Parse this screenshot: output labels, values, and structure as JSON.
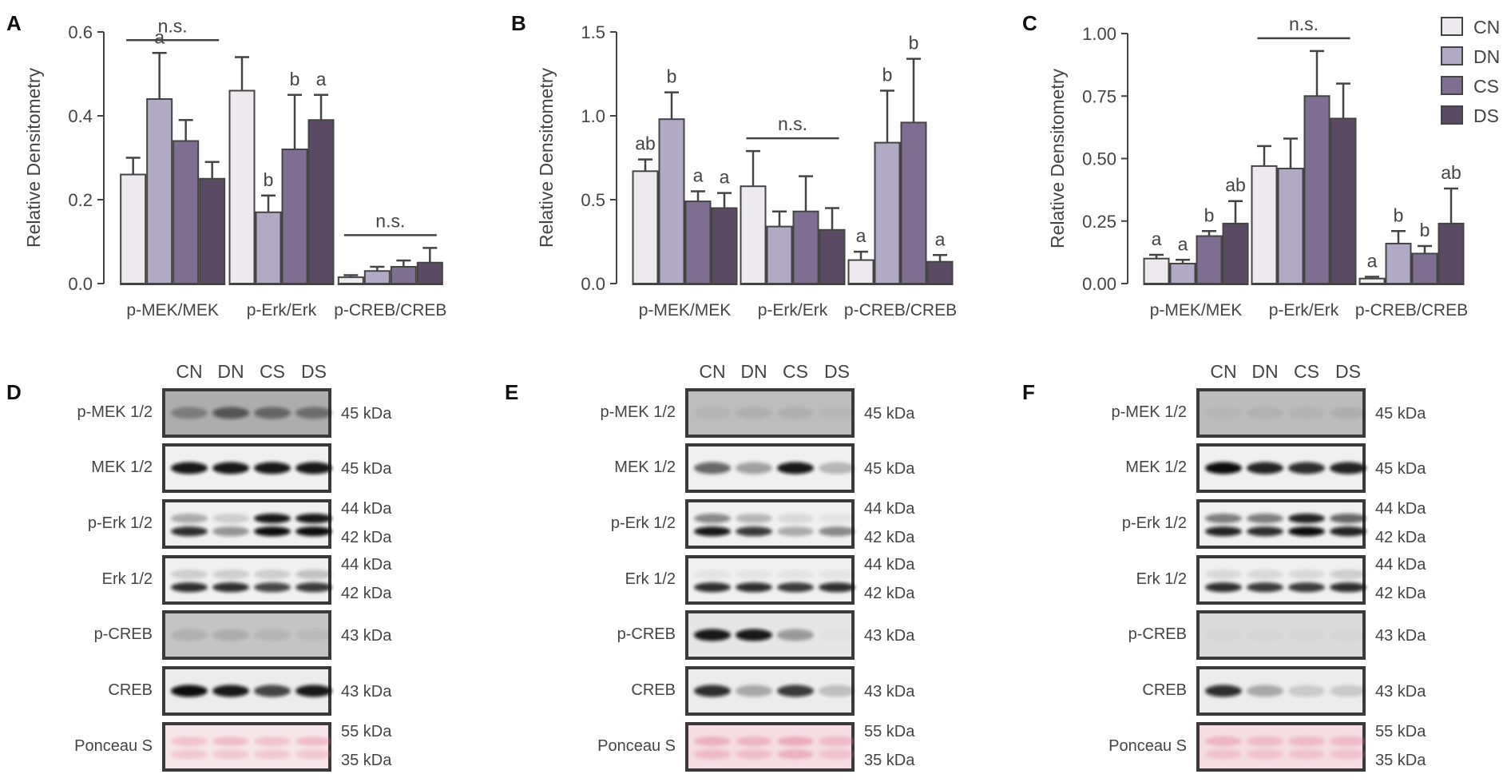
{
  "colors": {
    "CN": "#eceaef",
    "DN": "#b2aac4",
    "CS": "#7e6f92",
    "DS": "#5a4a63",
    "axis": "#444444",
    "stroke": "#444444"
  },
  "legend": {
    "items": [
      {
        "name": "CN",
        "color": "#eceaef"
      },
      {
        "name": "DN",
        "color": "#b2aac4"
      },
      {
        "name": "CS",
        "color": "#7e6f92"
      },
      {
        "name": "DS",
        "color": "#5a4a63"
      }
    ]
  },
  "chart_data": [
    {
      "panel": "A",
      "type": "bar",
      "ylabel": "Relative Densitometry",
      "ylim": [
        0,
        0.6
      ],
      "yticks": [
        0,
        0.2,
        0.4,
        0.6
      ],
      "tick_labels": [
        "0.0",
        "0.2",
        "0.4",
        "0.6"
      ],
      "categories": [
        "p-MEK/MEK",
        "p-Erk/Erk",
        "p-CREB/CREB"
      ],
      "series": [
        {
          "name": "CN",
          "values": [
            0.26,
            0.46,
            0.015
          ],
          "errors": [
            0.04,
            0.08,
            0.005
          ]
        },
        {
          "name": "DN",
          "values": [
            0.44,
            0.17,
            0.03
          ],
          "errors": [
            0.11,
            0.04,
            0.01
          ]
        },
        {
          "name": "CS",
          "values": [
            0.34,
            0.32,
            0.04
          ],
          "errors": [
            0.05,
            0.13,
            0.015
          ]
        },
        {
          "name": "DS",
          "values": [
            0.25,
            0.39,
            0.05
          ],
          "errors": [
            0.04,
            0.06,
            0.035
          ]
        }
      ],
      "letters": [
        [
          "",
          "a",
          "",
          ""
        ],
        [
          "",
          "b",
          "b",
          "a"
        ],
        [
          "",
          "",
          "",
          ""
        ]
      ],
      "ns_label": [
        "n.s.",
        "",
        "n.s."
      ]
    },
    {
      "panel": "B",
      "type": "bar",
      "ylabel": "Relative Densitometry",
      "ylim": [
        0,
        1.5
      ],
      "yticks": [
        0,
        0.5,
        1.0,
        1.5
      ],
      "tick_labels": [
        "0.0",
        "0.5",
        "1.0",
        "1.5"
      ],
      "categories": [
        "p-MEK/MEK",
        "p-Erk/Erk",
        "p-CREB/CREB"
      ],
      "series": [
        {
          "name": "CN",
          "values": [
            0.67,
            0.58,
            0.14
          ],
          "errors": [
            0.07,
            0.21,
            0.05
          ]
        },
        {
          "name": "DN",
          "values": [
            0.98,
            0.34,
            0.84
          ],
          "errors": [
            0.16,
            0.09,
            0.31
          ]
        },
        {
          "name": "CS",
          "values": [
            0.49,
            0.43,
            0.96
          ],
          "errors": [
            0.06,
            0.21,
            0.38
          ]
        },
        {
          "name": "DS",
          "values": [
            0.45,
            0.32,
            0.13
          ],
          "errors": [
            0.09,
            0.13,
            0.04
          ]
        }
      ],
      "letters": [
        [
          "ab",
          "b",
          "a",
          "a"
        ],
        [
          "",
          "",
          "",
          ""
        ],
        [
          "a",
          "b",
          "b",
          "a"
        ]
      ],
      "ns_label": [
        "",
        "n.s.",
        ""
      ]
    },
    {
      "panel": "C",
      "type": "bar",
      "ylabel": "Relative Densitometry",
      "ylim": [
        0,
        1.0
      ],
      "yticks": [
        0,
        0.25,
        0.5,
        0.75,
        1.0
      ],
      "tick_labels": [
        "0.00",
        "0.25",
        "0.50",
        "0.75",
        "1.00"
      ],
      "categories": [
        "p-MEK/MEK",
        "p-Erk/Erk",
        "p-CREB/CREB"
      ],
      "series": [
        {
          "name": "CN",
          "values": [
            0.1,
            0.47,
            0.02
          ],
          "errors": [
            0.015,
            0.08,
            0.007
          ]
        },
        {
          "name": "DN",
          "values": [
            0.08,
            0.46,
            0.16
          ],
          "errors": [
            0.015,
            0.12,
            0.05
          ]
        },
        {
          "name": "CS",
          "values": [
            0.19,
            0.75,
            0.12
          ],
          "errors": [
            0.02,
            0.18,
            0.03
          ]
        },
        {
          "name": "DS",
          "values": [
            0.24,
            0.66,
            0.24
          ],
          "errors": [
            0.09,
            0.14,
            0.14
          ]
        }
      ],
      "letters": [
        [
          "a",
          "a",
          "b",
          "ab"
        ],
        [
          "",
          "",
          "",
          ""
        ],
        [
          "a",
          "b",
          "b",
          "ab"
        ]
      ],
      "ns_label": [
        "",
        "n.s.",
        ""
      ]
    }
  ],
  "blots": {
    "lanes": [
      "CN",
      "DN",
      "CS",
      "DS"
    ],
    "panels": [
      {
        "panel": "D",
        "rows": [
          {
            "label": "p-MEK 1/2",
            "kda": [
              "45 kDa"
            ],
            "bg": "#adadad",
            "bands": [
              [
                0.3,
                0.55,
                0.45,
                0.4
              ]
            ],
            "type": "single"
          },
          {
            "label": "MEK 1/2",
            "kda": [
              "45 kDa"
            ],
            "bg": "#f0f0f0",
            "bands": [
              [
                0.95,
                0.95,
                0.95,
                0.95
              ]
            ],
            "type": "single"
          },
          {
            "label": "p-Erk 1/2",
            "kda": [
              "44 kDa",
              "42 kDa"
            ],
            "bg": "#f0f0f0",
            "bands": [
              [
                0.3,
                0.15,
                0.95,
                0.95
              ],
              [
                0.85,
                0.4,
                1.0,
                1.0
              ]
            ],
            "type": "double"
          },
          {
            "label": "Erk 1/2",
            "kda": [
              "44 kDa",
              "42 kDa"
            ],
            "bg": "#f0f0f0",
            "bands": [
              [
                0.15,
                0.15,
                0.15,
                0.2
              ],
              [
                0.85,
                0.85,
                0.75,
                0.8
              ]
            ],
            "type": "double"
          },
          {
            "label": "p-CREB",
            "kda": [
              "43 kDa"
            ],
            "bg": "#c4c4c4",
            "bands": [
              [
                0.1,
                0.12,
                0.08,
                0.05
              ]
            ],
            "type": "single"
          },
          {
            "label": "CREB",
            "kda": [
              "43 kDa"
            ],
            "bg": "#ececec",
            "bands": [
              [
                1.0,
                0.95,
                0.75,
                0.95
              ]
            ],
            "type": "single"
          },
          {
            "label": "Ponceau S",
            "kda": [
              "55 kDa",
              "35 kDa"
            ],
            "bg": "#f7e6e9",
            "bands": [
              [
                0.4,
                0.45,
                0.4,
                0.45
              ],
              [
                0.35,
                0.35,
                0.35,
                0.35
              ]
            ],
            "type": "ponceau"
          }
        ]
      },
      {
        "panel": "E",
        "rows": [
          {
            "label": "p-MEK 1/2",
            "kda": [
              "45 kDa"
            ],
            "bg": "#bdbdbd",
            "bands": [
              [
                0.05,
                0.08,
                0.08,
                0.03
              ]
            ],
            "type": "single"
          },
          {
            "label": "MEK 1/2",
            "kda": [
              "45 kDa"
            ],
            "bg": "#f0f0f0",
            "bands": [
              [
                0.6,
                0.35,
                0.95,
                0.25
              ]
            ],
            "type": "single"
          },
          {
            "label": "p-Erk 1/2",
            "kda": [
              "44 kDa",
              "42 kDa"
            ],
            "bg": "#f0f0f0",
            "bands": [
              [
                0.45,
                0.25,
                0.1,
                0.05
              ],
              [
                0.95,
                0.8,
                0.3,
                0.45
              ]
            ],
            "type": "double"
          },
          {
            "label": "Erk 1/2",
            "kda": [
              "44 kDa",
              "42 kDa"
            ],
            "bg": "#f0f0f0",
            "bands": [
              [
                0.05,
                0.05,
                0.05,
                0.05
              ],
              [
                0.85,
                0.85,
                0.8,
                0.85
              ]
            ],
            "type": "double"
          },
          {
            "label": "p-CREB",
            "kda": [
              "43 kDa"
            ],
            "bg": "#e6e6e6",
            "bands": [
              [
                0.95,
                0.95,
                0.35,
                0.02
              ]
            ],
            "type": "single"
          },
          {
            "label": "CREB",
            "kda": [
              "43 kDa"
            ],
            "bg": "#ececec",
            "bands": [
              [
                0.85,
                0.3,
                0.8,
                0.2
              ]
            ],
            "type": "single"
          },
          {
            "label": "Ponceau S",
            "kda": [
              "55 kDa",
              "35 kDa"
            ],
            "bg": "#f5dde3",
            "bands": [
              [
                0.55,
                0.5,
                0.6,
                0.45
              ],
              [
                0.45,
                0.4,
                0.55,
                0.35
              ]
            ],
            "type": "ponceau"
          }
        ]
      },
      {
        "panel": "F",
        "rows": [
          {
            "label": "p-MEK 1/2",
            "kda": [
              "45 kDa"
            ],
            "bg": "#bcbcbc",
            "bands": [
              [
                0.03,
                0.06,
                0.05,
                0.08
              ]
            ],
            "type": "single"
          },
          {
            "label": "MEK 1/2",
            "kda": [
              "45 kDa"
            ],
            "bg": "#f0f0f0",
            "bands": [
              [
                1.0,
                0.9,
                0.85,
                0.9
              ]
            ],
            "type": "single"
          },
          {
            "label": "p-Erk 1/2",
            "kda": [
              "44 kDa",
              "42 kDa"
            ],
            "bg": "#f0f0f0",
            "bands": [
              [
                0.5,
                0.5,
                0.9,
                0.6
              ],
              [
                0.9,
                0.85,
                1.0,
                0.9
              ]
            ],
            "type": "double"
          },
          {
            "label": "Erk 1/2",
            "kda": [
              "44 kDa",
              "42 kDa"
            ],
            "bg": "#f0f0f0",
            "bands": [
              [
                0.1,
                0.1,
                0.1,
                0.15
              ],
              [
                0.85,
                0.8,
                0.8,
                0.85
              ]
            ],
            "type": "double"
          },
          {
            "label": "p-CREB",
            "kda": [
              "43 kDa"
            ],
            "bg": "#dadada",
            "bands": [
              [
                0.02,
                0.02,
                0.02,
                0.02
              ]
            ],
            "type": "single"
          },
          {
            "label": "CREB",
            "kda": [
              "43 kDa"
            ],
            "bg": "#ececec",
            "bands": [
              [
                0.85,
                0.3,
                0.15,
                0.15
              ]
            ],
            "type": "single"
          },
          {
            "label": "Ponceau S",
            "kda": [
              "55 kDa",
              "35 kDa"
            ],
            "bg": "#f5dde3",
            "bands": [
              [
                0.5,
                0.45,
                0.45,
                0.45
              ],
              [
                0.35,
                0.35,
                0.35,
                0.35
              ]
            ],
            "type": "ponceau"
          }
        ]
      }
    ]
  }
}
